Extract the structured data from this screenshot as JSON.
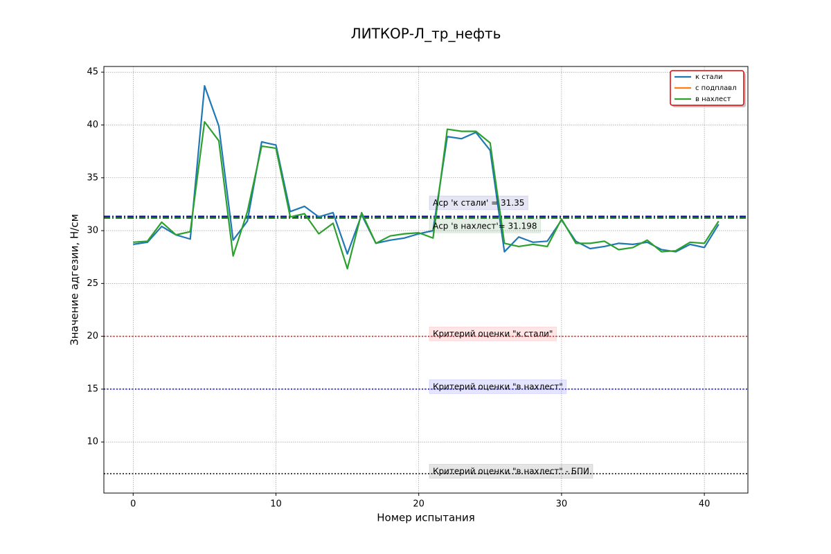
{
  "chart_data": {
    "type": "line",
    "title": "ЛИТКОР-Л_тр_нефть",
    "xlabel": "Номер испытания",
    "ylabel": "Значение адгезии, Н/см",
    "x": [
      0,
      1,
      2,
      3,
      4,
      5,
      6,
      7,
      8,
      9,
      10,
      11,
      12,
      13,
      14,
      15,
      16,
      17,
      18,
      19,
      20,
      21,
      22,
      23,
      24,
      25,
      26,
      27,
      28,
      29,
      30,
      31,
      32,
      33,
      34,
      35,
      36,
      37,
      38,
      39,
      40,
      41
    ],
    "series": [
      {
        "name": "к стали",
        "color": "#1f77b4",
        "values": [
          28.7,
          28.9,
          30.4,
          29.6,
          29.2,
          43.7,
          39.9,
          29.1,
          30.9,
          38.4,
          38.1,
          31.8,
          32.3,
          31.3,
          31.7,
          27.8,
          31.5,
          28.8,
          29.1,
          29.3,
          29.7,
          30.0,
          38.9,
          38.7,
          39.3,
          37.6,
          28.0,
          29.4,
          28.9,
          29.0,
          31.0,
          29.0,
          28.3,
          28.5,
          28.8,
          28.7,
          28.9,
          28.2,
          28.0,
          28.7,
          28.4,
          30.6
        ]
      },
      {
        "name": "с подплавл",
        "color": "#ff7f0e",
        "values": [
          null,
          null,
          null,
          null,
          null,
          null,
          null,
          null,
          null,
          null,
          null,
          null,
          null,
          null,
          null,
          null,
          null,
          null,
          null,
          null,
          null,
          null,
          null,
          null,
          null,
          null,
          null,
          null,
          null,
          null,
          null,
          null,
          null,
          null,
          null,
          null,
          null,
          null,
          null,
          null,
          null,
          null
        ]
      },
      {
        "name": "в нахлест",
        "color": "#2ca02c",
        "values": [
          28.9,
          29.0,
          30.8,
          29.6,
          29.9,
          40.3,
          38.5,
          27.6,
          31.8,
          38.0,
          37.8,
          31.3,
          31.6,
          29.7,
          30.7,
          26.4,
          31.7,
          28.8,
          29.5,
          29.7,
          29.8,
          29.3,
          39.6,
          39.4,
          39.4,
          38.3,
          28.8,
          28.5,
          28.7,
          28.5,
          31.1,
          28.8,
          28.8,
          29.0,
          28.2,
          28.4,
          29.1,
          28.0,
          28.1,
          28.9,
          28.8,
          30.9
        ]
      }
    ],
    "hlines": [
      {
        "value": 31.35,
        "color": "#00008b",
        "style": "dashdot",
        "label": "Aср 'к стали' = 31.35"
      },
      {
        "value": 31.198,
        "color": "#006400",
        "style": "dashdot",
        "label": "Aср 'в нахлест'= 31.198"
      },
      {
        "value": 20,
        "color": "#ff0000",
        "style": "dotted",
        "label": "Критерий оценки \"к стали\""
      },
      {
        "value": 15,
        "color": "#0000ff",
        "style": "dotted",
        "label": "Критерий оценки \"в нахлест\""
      },
      {
        "value": 7,
        "color": "#000000",
        "style": "dotted",
        "label": "Критерий оценки \"в нахлест\" - БПИ"
      }
    ],
    "annotation_x": 20.5,
    "xlim": [
      -2.05,
      43.05
    ],
    "xticks": [
      0,
      10,
      20,
      30,
      40
    ],
    "ylim": [
      5.165,
      45.535
    ],
    "yticks": [
      10,
      15,
      20,
      25,
      30,
      35,
      40,
      45
    ],
    "grid": true,
    "legend": "upper right"
  }
}
